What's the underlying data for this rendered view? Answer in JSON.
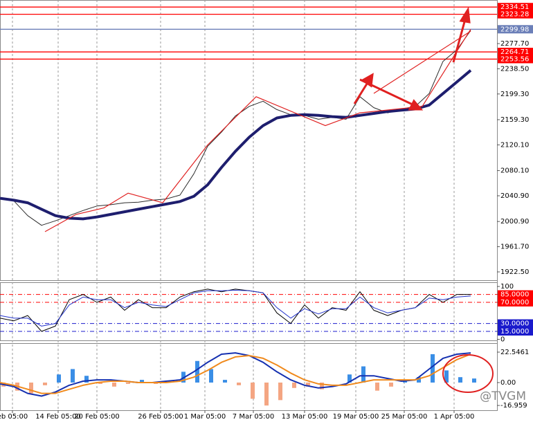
{
  "watermark": "@TVGM",
  "chart_data": [
    {
      "type": "line",
      "x": [
        0,
        5,
        10,
        15,
        20,
        25,
        30,
        35,
        40,
        45,
        50,
        55,
        60,
        65,
        70,
        75,
        80,
        85,
        90,
        95,
        100,
        105,
        110,
        115,
        120,
        125,
        130,
        135,
        140,
        145,
        150,
        155,
        160,
        165,
        170
      ],
      "xlim": [
        0,
        179.5
      ],
      "xticks": [
        {
          "value": 4.5,
          "label": "eb 05:00"
        },
        {
          "value": 21,
          "label": "14 Feb 05:00"
        },
        {
          "value": 35,
          "label": "20 Feb 05:00"
        },
        {
          "value": 58,
          "label": "26 Feb 05:00"
        },
        {
          "value": 74,
          "label": "1 Mar 05:00"
        },
        {
          "value": 91.5,
          "label": "7 Mar 05:00"
        },
        {
          "value": 110,
          "label": "13 Mar 05:00"
        },
        {
          "value": 128.5,
          "label": "19 Mar 05:00"
        },
        {
          "value": 146,
          "label": "25 Mar 05:00"
        },
        {
          "value": 164,
          "label": "1 Apr 05:00"
        }
      ],
      "ylim": [
        1909.6,
        2345.5
      ],
      "yticks": [
        {
          "value": 2277.7,
          "label": "2277.70"
        },
        {
          "value": 2238.5,
          "label": "2238.50"
        },
        {
          "value": 2199.3,
          "label": "2199.30"
        },
        {
          "value": 2159.3,
          "label": "2159.30"
        },
        {
          "value": 2120.1,
          "label": "2120.10"
        },
        {
          "value": 2080.1,
          "label": "2080.10"
        },
        {
          "value": 2040.9,
          "label": "2040.90"
        },
        {
          "value": 2000.9,
          "label": "2000.90"
        },
        {
          "value": 1961.7,
          "label": "1961.70"
        },
        {
          "value": 1922.5,
          "label": "1922.50"
        }
      ],
      "levels": [
        {
          "value": 2334.51,
          "color": "#ff0000"
        },
        {
          "value": 2323.28,
          "color": "#ff0000"
        },
        {
          "value": 2299.98,
          "color": "#6b7fb8"
        },
        {
          "value": 2264.71,
          "color": "#ff0000"
        },
        {
          "value": 2253.56,
          "color": "#ff0000"
        }
      ],
      "series": [
        {
          "color": "#2a2a2a",
          "line_width": 1,
          "values": [
            2037,
            2033,
            2010,
            1995,
            2002,
            2010,
            2018,
            2025,
            2027,
            2030,
            2031,
            2034,
            2036,
            2042,
            2075,
            2118,
            2140,
            2165,
            2180,
            2188,
            2175,
            2167,
            2166,
            2160,
            2163,
            2160,
            2195,
            2178,
            2170,
            2176,
            2180,
            2200,
            2250,
            2268,
            2298
          ]
        },
        {
          "color": "#1e1e6e",
          "line_width": 4,
          "values": [
            2037,
            2034,
            2030,
            2020,
            2010,
            2006,
            2005,
            2008,
            2012,
            2016,
            2020,
            2024,
            2028,
            2032,
            2040,
            2058,
            2085,
            2110,
            2132,
            2150,
            2162,
            2166,
            2167,
            2166,
            2164,
            2163,
            2166,
            2169,
            2172,
            2174,
            2176,
            2182,
            2200,
            2218,
            2236
          ]
        },
        {
          "color": "#e02020",
          "line_width": 1.2,
          "x": [
            16.25,
            27.5,
            37.5,
            46.25,
            58.75,
            75,
            92.5,
            117.5,
            130,
            152.5,
            170
          ],
          "values": [
            1985,
            2012,
            2022,
            2045,
            2030,
            2120,
            2195,
            2150,
            2170,
            2180,
            2300
          ]
        }
      ]
    },
    {
      "type": "line",
      "ylim": [
        -2,
        108
      ],
      "yticks": [
        100,
        {
          "value": 85,
          "label": "85.0000"
        },
        {
          "value": 70,
          "label": "70.0000"
        },
        {
          "value": 30,
          "label": "30.0000"
        },
        {
          "value": 15,
          "label": "15.0000"
        },
        0
      ],
      "levels": [
        {
          "value": 85,
          "color": "#ff0000"
        },
        {
          "value": 70,
          "color": "#ff0000"
        },
        {
          "value": 30,
          "color": "#1a1acc"
        },
        {
          "value": 15,
          "color": "#1a1acc"
        }
      ],
      "x": [
        0,
        5,
        10,
        15,
        20,
        25,
        30,
        35,
        40,
        45,
        50,
        55,
        60,
        65,
        70,
        75,
        80,
        85,
        90,
        95,
        100,
        105,
        110,
        115,
        120,
        125,
        130,
        135,
        140,
        145,
        150,
        155,
        160,
        165,
        170
      ],
      "series": [
        {
          "color": "#000000",
          "line_width": 1,
          "values": [
            40,
            35,
            45,
            15,
            25,
            75,
            85,
            70,
            80,
            55,
            75,
            60,
            60,
            80,
            90,
            95,
            90,
            95,
            92,
            88,
            50,
            30,
            65,
            40,
            60,
            55,
            90,
            55,
            45,
            55,
            60,
            85,
            70,
            85,
            85
          ]
        },
        {
          "color": "#2233cc",
          "line_width": 1,
          "values": [
            45,
            40,
            40,
            25,
            30,
            65,
            80,
            75,
            75,
            60,
            70,
            65,
            62,
            75,
            88,
            92,
            92,
            93,
            92,
            88,
            60,
            40,
            58,
            48,
            58,
            58,
            80,
            60,
            50,
            55,
            60,
            78,
            75,
            80,
            82
          ]
        }
      ]
    },
    {
      "type": "bar",
      "ylim": [
        -20.5,
        29.2
      ],
      "yticks": [
        22.5461,
        {
          "value": 0,
          "label": "0.00"
        },
        -16.959
      ],
      "x": [
        0,
        5,
        10,
        15,
        20,
        25,
        30,
        35,
        40,
        45,
        50,
        55,
        60,
        65,
        70,
        75,
        80,
        85,
        90,
        95,
        100,
        105,
        110,
        115,
        120,
        125,
        130,
        135,
        140,
        145,
        150,
        155,
        160,
        165,
        170
      ],
      "bars": {
        "positive_color": "#3a8ee6",
        "negative_color": "#f4a582",
        "x": [
          1.25,
          6.25,
          11.25,
          16.25,
          21.25,
          26.25,
          31.25,
          36.25,
          41.25,
          46.25,
          51.25,
          56.25,
          61.25,
          66.25,
          71.25,
          76.25,
          81.25,
          86.25,
          91.25,
          96.25,
          101.25,
          106.25,
          111.25,
          116.25,
          121.25,
          126.25,
          131.25,
          136.25,
          141.25,
          146.25,
          151.25,
          156.25,
          161.25,
          166.25,
          171.25
        ],
        "values": [
          -3,
          -6,
          -8,
          -2,
          6,
          10,
          5,
          -1,
          -3,
          -1,
          2,
          -1,
          1,
          8,
          16,
          10,
          2,
          -2,
          -12,
          -17,
          -13,
          -4,
          -3,
          -5,
          0,
          6,
          12,
          -6,
          -3,
          2,
          4,
          21,
          9,
          4,
          3
        ]
      },
      "series": [
        {
          "color": "#1530b0",
          "line_width": 2,
          "values": [
            -1,
            -3,
            -8,
            -10,
            -7,
            -2,
            1,
            2,
            2,
            1,
            0,
            0,
            1,
            2,
            8,
            15,
            21,
            22,
            20,
            15,
            8,
            2,
            -2,
            -4,
            -3,
            -1,
            5,
            5,
            3,
            1,
            2,
            10,
            18,
            21,
            22
          ]
        },
        {
          "color": "#f08a1c",
          "line_width": 2,
          "values": [
            0,
            -2,
            -5,
            -8,
            -8,
            -5,
            -2,
            0,
            1,
            1,
            0,
            0,
            0,
            1,
            4,
            9,
            15,
            19,
            20,
            18,
            13,
            7,
            2,
            -1,
            -2,
            -2,
            0,
            2,
            2,
            2,
            2,
            5,
            11,
            17,
            21
          ]
        }
      ]
    }
  ]
}
